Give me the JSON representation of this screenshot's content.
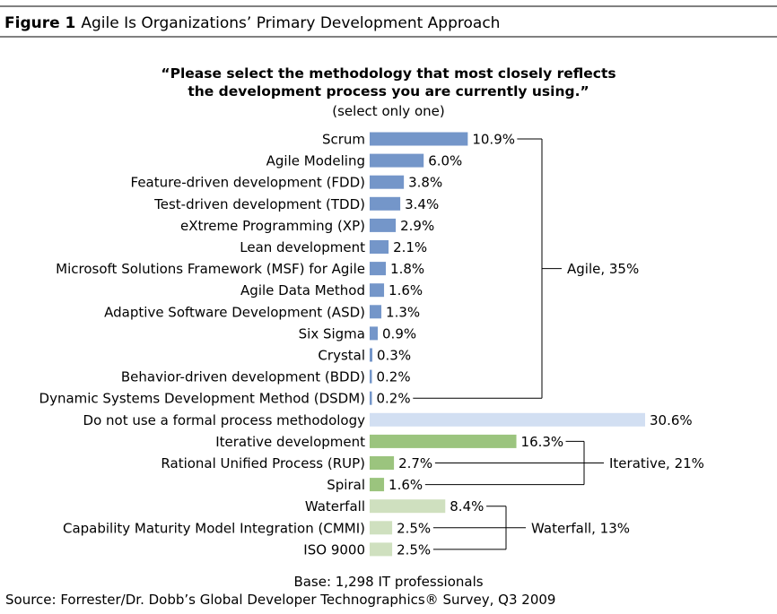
{
  "figure": {
    "label": "Figure 1",
    "title": "Agile Is Organizations’ Primary Development Approach"
  },
  "question": {
    "line1": "“Please select the methodology that most closely reflects",
    "line2": "the development process you are currently using.”",
    "line3": "(select only one)"
  },
  "footer": {
    "base": "Base: 1,298 IT professionals",
    "source": "Source: Forrester/Dr. Dobb’s Global Developer Technographics® Survey, Q3 2009"
  },
  "colors": {
    "agile": "#7496c9",
    "none": "#d2dff2",
    "iterative": "#9bc47e",
    "waterfall": "#cfe0bf"
  },
  "chart_data": {
    "type": "bar",
    "orientation": "horizontal",
    "unit": "%",
    "categories": [
      "Scrum",
      "Agile Modeling",
      "Feature-driven development (FDD)",
      "Test-driven development (TDD)",
      "eXtreme Programming (XP)",
      "Lean development",
      "Microsoft Solutions Framework (MSF) for Agile",
      "Agile Data Method",
      "Adaptive Software Development (ASD)",
      "Six Sigma",
      "Crystal",
      "Behavior-driven development (BDD)",
      "Dynamic Systems Development Method (DSDM)",
      "Do not use a formal process methodology",
      "Iterative development",
      "Rational Unified Process (RUP)",
      "Spiral",
      "Waterfall",
      "Capability Maturity Model Integration (CMMI)",
      "ISO 9000"
    ],
    "values": [
      10.9,
      6.0,
      3.8,
      3.4,
      2.9,
      2.1,
      1.8,
      1.6,
      1.3,
      0.9,
      0.3,
      0.2,
      0.2,
      30.6,
      16.3,
      2.7,
      1.6,
      8.4,
      2.5,
      2.5
    ],
    "value_labels": [
      "10.9%",
      "6.0%",
      "3.8%",
      "3.4%",
      "2.9%",
      "2.1%",
      "1.8%",
      "1.6%",
      "1.3%",
      "0.9%",
      "0.3%",
      "0.2%",
      "0.2%",
      "30.6%",
      "16.3%",
      "2.7%",
      "1.6%",
      "8.4%",
      "2.5%",
      "2.5%"
    ],
    "bar_groups": [
      "agile",
      "agile",
      "agile",
      "agile",
      "agile",
      "agile",
      "agile",
      "agile",
      "agile",
      "agile",
      "agile",
      "agile",
      "agile",
      "none",
      "iterative",
      "iterative",
      "iterative",
      "waterfall",
      "waterfall",
      "waterfall"
    ],
    "xlim": [
      0,
      30.6
    ],
    "grid": false,
    "legend": "none",
    "annotations": [
      {
        "label": "Agile, 35%",
        "group": "agile",
        "first": 0,
        "last": 12
      },
      {
        "label": "Iterative, 21%",
        "group": "iterative",
        "first": 14,
        "last": 16
      },
      {
        "label": "Waterfall, 13%",
        "group": "waterfall",
        "first": 17,
        "last": 19
      }
    ]
  }
}
